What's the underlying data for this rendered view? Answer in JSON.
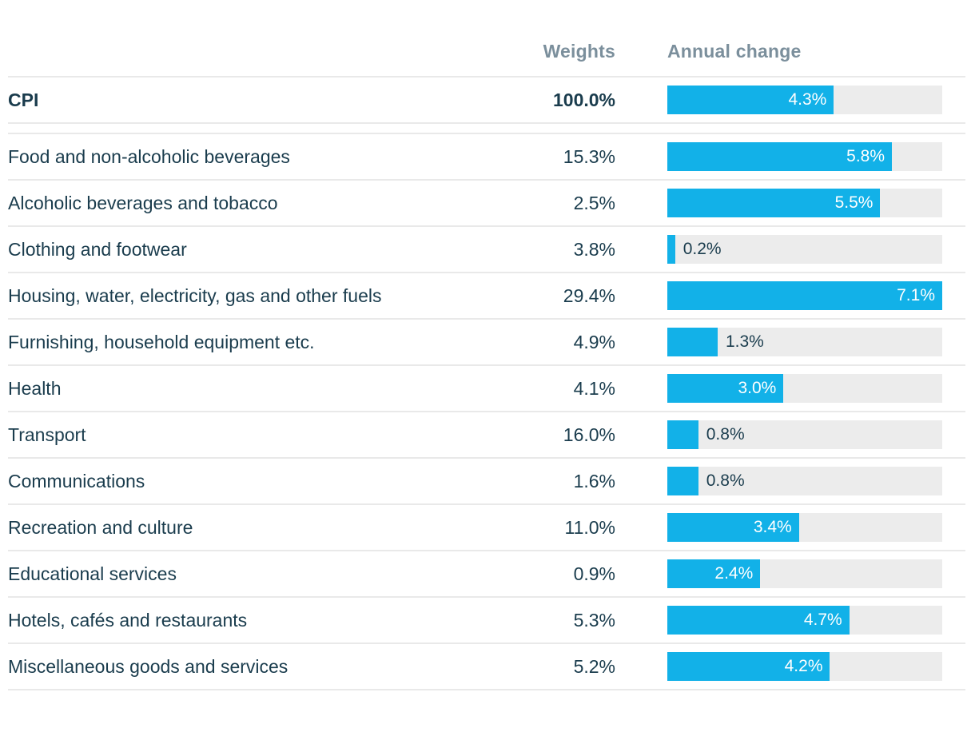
{
  "header": {
    "weights_label": "Weights",
    "annual_change_label": "Annual change"
  },
  "colors": {
    "bar": "#12b1e8",
    "track": "#ececec",
    "text": "#1a3c4d",
    "header_text": "#7b8f9c",
    "row_border": "#e9e9e9"
  },
  "chart_data": {
    "type": "bar",
    "orientation": "horizontal",
    "title": "",
    "columns": [
      "Weights",
      "Annual change"
    ],
    "xlim": [
      0,
      7.1
    ],
    "value_suffix": "%",
    "legend": "none",
    "grid": false,
    "rows": [
      {
        "label": "CPI",
        "weight": "100.0%",
        "annual_change": 4.3,
        "annual_change_label": "4.3%",
        "emphasis": true,
        "divider_after": true
      },
      {
        "label": "Food and non-alcoholic beverages",
        "weight": "15.3%",
        "annual_change": 5.8,
        "annual_change_label": "5.8%"
      },
      {
        "label": "Alcoholic beverages and tobacco",
        "weight": "2.5%",
        "annual_change": 5.5,
        "annual_change_label": "5.5%"
      },
      {
        "label": "Clothing and footwear",
        "weight": "3.8%",
        "annual_change": 0.2,
        "annual_change_label": "0.2%"
      },
      {
        "label": "Housing, water, electricity, gas and other fuels",
        "weight": "29.4%",
        "annual_change": 7.1,
        "annual_change_label": "7.1%"
      },
      {
        "label": "Furnishing, household equipment etc.",
        "weight": "4.9%",
        "annual_change": 1.3,
        "annual_change_label": "1.3%"
      },
      {
        "label": "Health",
        "weight": "4.1%",
        "annual_change": 3.0,
        "annual_change_label": "3.0%"
      },
      {
        "label": "Transport",
        "weight": "16.0%",
        "annual_change": 0.8,
        "annual_change_label": "0.8%"
      },
      {
        "label": "Communications",
        "weight": "1.6%",
        "annual_change": 0.8,
        "annual_change_label": "0.8%"
      },
      {
        "label": "Recreation and culture",
        "weight": "11.0%",
        "annual_change": 3.4,
        "annual_change_label": "3.4%"
      },
      {
        "label": "Educational services",
        "weight": "0.9%",
        "annual_change": 2.4,
        "annual_change_label": "2.4%"
      },
      {
        "label": "Hotels, cafés and restaurants",
        "weight": "5.3%",
        "annual_change": 4.7,
        "annual_change_label": "4.7%"
      },
      {
        "label": "Miscellaneous goods and services",
        "weight": "5.2%",
        "annual_change": 4.2,
        "annual_change_label": "4.2%"
      }
    ]
  }
}
